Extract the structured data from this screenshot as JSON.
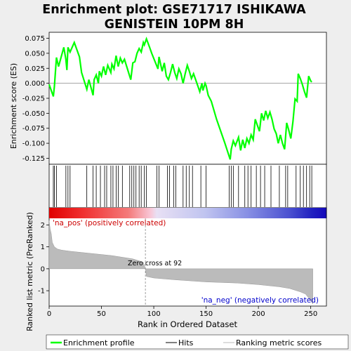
{
  "chart_data": [
    {
      "type": "line",
      "title": "Enrichment plot: GSE71717 ISHIKAWA\nGENISTEIN 10PM 8H",
      "ylabel": "Enrichment score (ES)",
      "ylim": [
        -0.135,
        0.085
      ],
      "xlim": [
        0,
        265
      ],
      "yticks": [
        "0.075",
        "0.050",
        "0.025",
        "0.000",
        "-0.025",
        "-0.050",
        "-0.075",
        "-0.100",
        "-0.125"
      ],
      "series": [
        {
          "name": "Enrichment profile",
          "color": "#00ff00",
          "x": [
            0,
            4,
            5,
            7,
            9,
            14,
            16,
            17,
            18,
            20,
            24,
            29,
            31,
            36,
            38,
            42,
            43,
            45,
            47,
            48,
            50,
            52,
            54,
            56,
            59,
            60,
            62,
            64,
            66,
            68,
            70,
            72,
            78,
            80,
            82,
            84,
            86,
            88,
            90,
            91,
            93,
            96,
            98,
            104,
            105,
            108,
            110,
            112,
            114,
            116,
            118,
            120,
            122,
            124,
            126,
            128,
            130,
            132,
            134,
            136,
            138,
            140,
            142,
            144,
            146,
            147,
            149,
            150,
            152,
            155,
            160,
            168,
            173,
            174,
            176,
            178,
            181,
            183,
            185,
            187,
            189,
            191,
            193,
            195,
            197,
            199,
            201,
            203,
            205,
            207,
            209,
            211,
            213,
            215,
            217,
            219,
            221,
            223,
            225,
            227,
            229,
            231,
            233,
            235,
            237,
            238,
            240,
            242,
            244,
            246,
            248,
            250,
            251
          ],
          "y": [
            -0.002,
            -0.022,
            -0.005,
            0.043,
            0.028,
            0.06,
            0.04,
            0.022,
            0.06,
            0.052,
            0.068,
            0.044,
            0.018,
            -0.01,
            0.006,
            -0.02,
            0.006,
            0.014,
            0.0,
            0.02,
            0.012,
            0.028,
            0.014,
            0.03,
            0.018,
            0.032,
            0.024,
            0.046,
            0.028,
            0.042,
            0.034,
            0.04,
            0.006,
            0.034,
            0.036,
            0.05,
            0.058,
            0.052,
            0.068,
            0.064,
            0.074,
            0.06,
            0.05,
            0.024,
            0.044,
            0.02,
            0.034,
            0.012,
            0.006,
            0.018,
            0.032,
            0.018,
            0.008,
            0.024,
            0.016,
            0.0,
            0.016,
            0.03,
            0.02,
            0.008,
            0.016,
            0.006,
            -0.004,
            -0.014,
            0.0,
            -0.012,
            0.0,
            -0.004,
            -0.02,
            -0.03,
            -0.06,
            -0.1,
            -0.127,
            -0.11,
            -0.096,
            -0.104,
            -0.09,
            -0.112,
            -0.094,
            -0.108,
            -0.092,
            -0.1,
            -0.086,
            -0.094,
            -0.06,
            -0.07,
            -0.08,
            -0.05,
            -0.062,
            -0.046,
            -0.058,
            -0.048,
            -0.06,
            -0.076,
            -0.084,
            -0.1,
            -0.086,
            -0.1,
            -0.11,
            -0.066,
            -0.078,
            -0.092,
            -0.064,
            -0.026,
            -0.03,
            0.016,
            0.008,
            -0.002,
            -0.014,
            -0.024,
            0.012,
            0.004,
            0.002
          ]
        }
      ]
    },
    {
      "type": "bar",
      "title": "Hits",
      "hits_x": [
        4,
        5,
        7,
        16,
        18,
        20,
        36,
        42,
        45,
        49,
        53,
        55,
        59,
        61,
        64,
        66,
        70,
        77,
        79,
        81,
        83,
        86,
        88,
        91,
        93,
        103,
        105,
        113,
        115,
        119,
        121,
        128,
        131,
        134,
        137,
        145,
        150,
        172,
        174,
        176,
        181,
        187,
        190,
        193,
        198,
        202,
        206,
        212,
        220,
        226,
        228,
        236,
        240,
        243,
        246,
        249,
        251
      ]
    },
    {
      "type": "area",
      "ylabel": "Ranked list metric (PreRanked)",
      "xlabel": "Rank in Ordered Dataset",
      "xlim": [
        0,
        265
      ],
      "ylim": [
        -1.7,
        2.3
      ],
      "yticks": [
        "2",
        "1",
        "0",
        "-1"
      ],
      "xticks": [
        "0",
        "50",
        "100",
        "150",
        "200",
        "250"
      ],
      "zero_cross": 92,
      "x": [
        0,
        1,
        2,
        3,
        5,
        8,
        12,
        20,
        40,
        60,
        80,
        90,
        92,
        93,
        100,
        120,
        150,
        180,
        200,
        220,
        230,
        240,
        245,
        250,
        252
      ],
      "y": [
        2.2,
        1.8,
        1.6,
        1.2,
        1.0,
        0.9,
        0.85,
        0.8,
        0.7,
        0.6,
        0.45,
        0.3,
        0.0,
        -0.35,
        -0.42,
        -0.5,
        -0.6,
        -0.65,
        -0.72,
        -0.82,
        -0.9,
        -1.05,
        -1.15,
        -1.45,
        -1.6
      ]
    }
  ],
  "annotations": {
    "pos_label": "'na_pos' (positively correlated)",
    "neg_label": "'na_neg' (negatively correlated)",
    "zero_cross": "Zero cross at 92"
  },
  "legend": {
    "items": [
      {
        "label": "Enrichment profile",
        "color": "#00ff00"
      },
      {
        "label": "Hits",
        "color": "#000000"
      },
      {
        "label": "Ranking metric scores",
        "color": "#bbbbbb"
      }
    ]
  },
  "colors": {
    "profile": "#00ff00",
    "metric": "#bbbbbb",
    "pos_text": "#cc0000",
    "neg_text": "#0000cc",
    "zero_line": "#888888"
  }
}
